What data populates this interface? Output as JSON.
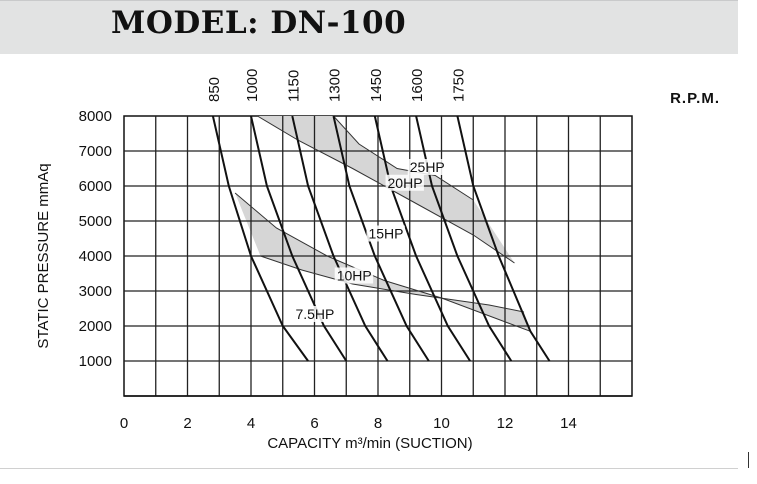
{
  "header": {
    "title": "MODEL: DN-100"
  },
  "chart_data": {
    "type": "line",
    "title": "MODEL: DN-100",
    "xlabel": "CAPACITY m³/min (SUCTION)",
    "ylabel": "STATIC PRESSURE mmAq",
    "rpm_unit_label": "R.P.M.",
    "xlim": [
      0,
      16
    ],
    "ylim": [
      0,
      8000
    ],
    "x_ticks": [
      0,
      2,
      4,
      6,
      8,
      10,
      12,
      14
    ],
    "y_ticks": [
      1000,
      2000,
      3000,
      4000,
      5000,
      6000,
      7000,
      8000
    ],
    "grid": true,
    "rpm_curves": [
      {
        "name": "850",
        "points": [
          [
            2.8,
            8000
          ],
          [
            3.3,
            6000
          ],
          [
            4.0,
            4000
          ],
          [
            5.0,
            2000
          ],
          [
            5.8,
            1000
          ]
        ]
      },
      {
        "name": "1000",
        "points": [
          [
            4.0,
            8000
          ],
          [
            4.5,
            6000
          ],
          [
            5.3,
            4000
          ],
          [
            6.3,
            2000
          ],
          [
            7.0,
            1000
          ]
        ]
      },
      {
        "name": "1150",
        "points": [
          [
            5.3,
            8000
          ],
          [
            5.8,
            6000
          ],
          [
            6.6,
            4000
          ],
          [
            7.6,
            2000
          ],
          [
            8.3,
            1000
          ]
        ]
      },
      {
        "name": "1300",
        "points": [
          [
            6.6,
            8000
          ],
          [
            7.1,
            6000
          ],
          [
            7.9,
            4000
          ],
          [
            8.9,
            2000
          ],
          [
            9.6,
            1000
          ]
        ]
      },
      {
        "name": "1450",
        "points": [
          [
            7.9,
            8000
          ],
          [
            8.4,
            6000
          ],
          [
            9.2,
            4000
          ],
          [
            10.2,
            2000
          ],
          [
            10.9,
            1000
          ]
        ]
      },
      {
        "name": "1600",
        "points": [
          [
            9.2,
            8000
          ],
          [
            9.7,
            6000
          ],
          [
            10.5,
            4000
          ],
          [
            11.5,
            2000
          ],
          [
            12.2,
            1000
          ]
        ]
      },
      {
        "name": "1750",
        "points": [
          [
            10.5,
            8000
          ],
          [
            11.0,
            6000
          ],
          [
            11.8,
            4000
          ],
          [
            12.8,
            1850
          ],
          [
            13.4,
            1000
          ]
        ]
      }
    ],
    "power_curves": [
      {
        "name": "25HP",
        "points": [
          [
            4.2,
            8000
          ],
          [
            5.5,
            7300
          ],
          [
            7.2,
            6500
          ],
          [
            9.0,
            5600
          ],
          [
            11.0,
            4600
          ],
          [
            12.3,
            3800
          ]
        ]
      },
      {
        "name": "20HP",
        "points": [
          [
            6.6,
            8000
          ],
          [
            7.4,
            7200
          ],
          [
            8.6,
            6500
          ],
          [
            9.8,
            6300
          ],
          [
            11.0,
            5600
          ]
        ]
      },
      {
        "name": "15HP",
        "points": [
          [
            3.5,
            5800
          ],
          [
            4.8,
            4800
          ],
          [
            6.4,
            4000
          ],
          [
            8.2,
            3300
          ],
          [
            10.0,
            2800
          ],
          [
            12.8,
            1850
          ]
        ]
      },
      {
        "name": "10HP",
        "points": [
          [
            4.3,
            4000
          ],
          [
            5.6,
            3600
          ],
          [
            7.2,
            3200
          ],
          [
            9.2,
            2900
          ],
          [
            11.5,
            2600
          ],
          [
            12.6,
            2400
          ]
        ]
      },
      {
        "name": "7.5HP",
        "points": []
      }
    ],
    "power_labels": [
      {
        "name": "25HP",
        "x": 9.0,
        "y": 6400
      },
      {
        "name": "20HP",
        "x": 8.3,
        "y": 5950
      },
      {
        "name": "15HP",
        "x": 7.7,
        "y": 4500
      },
      {
        "name": "10HP",
        "x": 6.7,
        "y": 3300
      },
      {
        "name": "7.5HP",
        "x": 5.4,
        "y": 2200
      }
    ],
    "shaded_bands": [
      {
        "between": [
          "25HP",
          "20HP"
        ]
      },
      {
        "between": [
          "15HP",
          "10HP"
        ]
      }
    ]
  }
}
